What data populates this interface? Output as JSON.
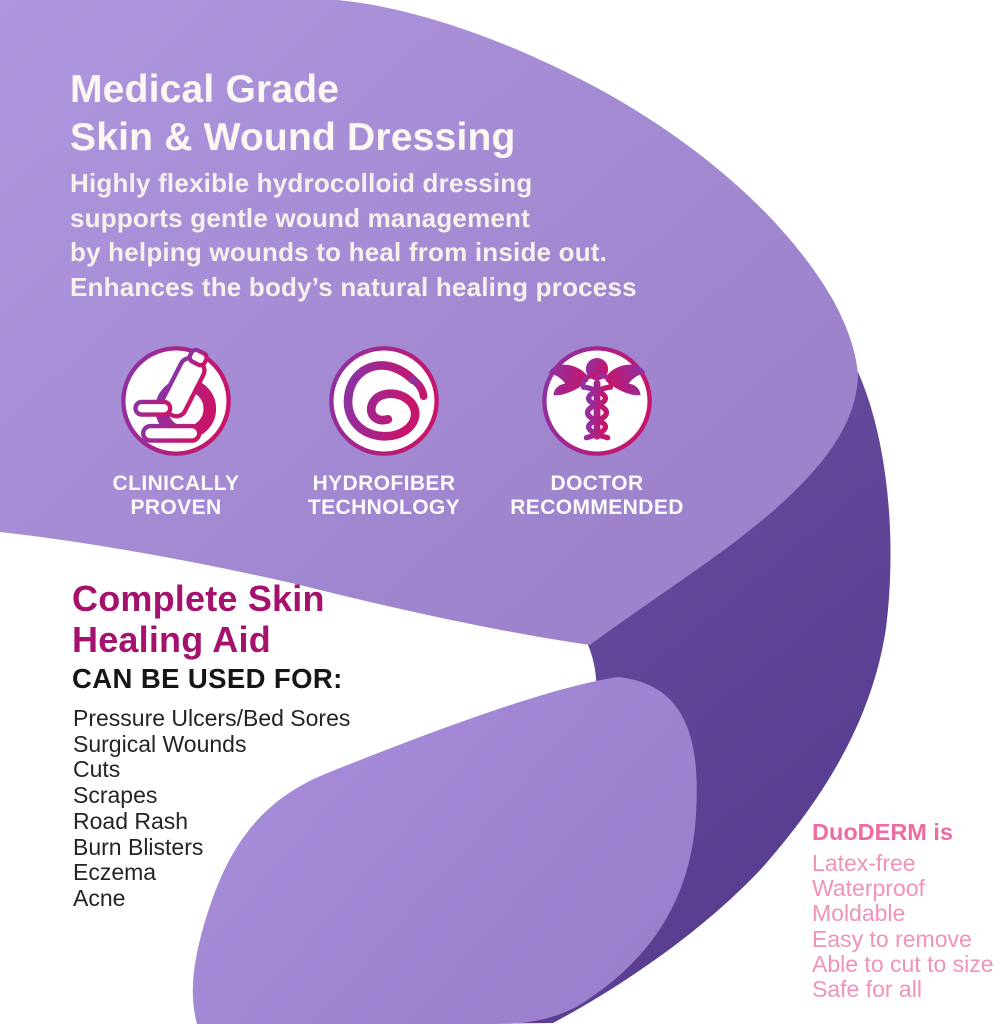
{
  "palette": {
    "light_purple": "#a78fd6",
    "dark_purple": "#5d4194",
    "magenta_heading": "#a5126d",
    "pink_bold": "#ee6ca6",
    "pink_light": "#f192ba",
    "icon_gradient_start": "#8a33a6",
    "icon_gradient_end": "#c6156b",
    "text_on_purple": "#fbf7f2",
    "text_dark": "#242424"
  },
  "hero": {
    "title": "Medical Grade\nSkin & Wound Dressing",
    "subtitle": "Highly flexible hydrocolloid dressing\nsupports gentle wound management\nby helping wounds to heal from inside out.\nEnhances the body’s natural healing process"
  },
  "badges": [
    {
      "icon": "microscope-icon",
      "label": "CLINICALLY\nPROVEN"
    },
    {
      "icon": "hydrofiber-swirl-icon",
      "label": "HYDROFIBER\nTECHNOLOGY"
    },
    {
      "icon": "caduceus-icon",
      "label": "DOCTOR\nRECOMMENDED"
    }
  ],
  "healing": {
    "heading": "Complete Skin\nHealing Aid",
    "subheading": "CAN BE USED FOR:",
    "uses": [
      "Pressure Ulcers/Bed Sores",
      "Surgical Wounds",
      "Cuts",
      "Scrapes",
      "Road Rash",
      "Burn Blisters",
      "Eczema",
      "Acne"
    ]
  },
  "features": {
    "heading": "DuoDERM is",
    "items": [
      "Latex-free",
      "Waterproof",
      "Moldable",
      "Easy to remove",
      "Able to cut to size",
      "Safe for all"
    ]
  }
}
